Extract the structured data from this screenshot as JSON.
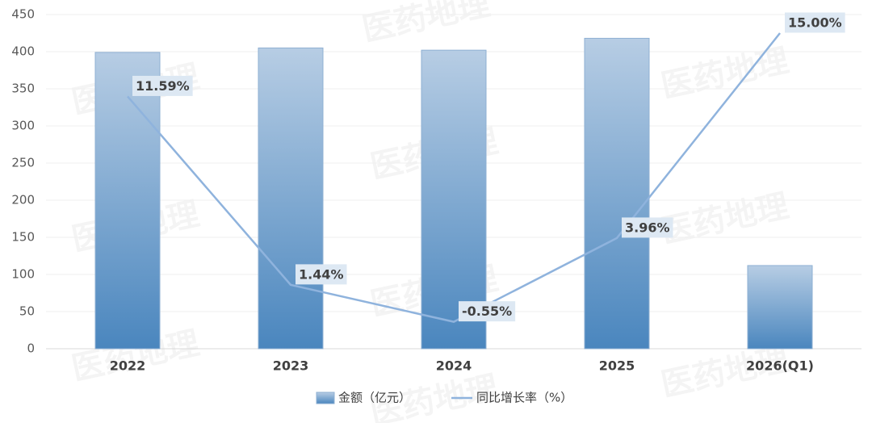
{
  "chart_data": {
    "type": "bar-line",
    "watermark": "医药地理",
    "categories": [
      "2022",
      "2023",
      "2024",
      "2025",
      "2026(Q1)"
    ],
    "series": [
      {
        "name": "金额（亿元）",
        "type": "bar",
        "color": "#4a86be",
        "values": [
          399,
          405,
          402,
          418,
          112
        ]
      },
      {
        "name": "同比增长率（%）",
        "type": "line",
        "axis": "y2",
        "color": "#8fb3dd",
        "values": [
          11.59,
          1.44,
          -0.55,
          3.96,
          15.0
        ],
        "value_labels": [
          "11.59%",
          "1.44%",
          "-0.55%",
          "3.96%",
          "15.00%"
        ]
      }
    ],
    "ylim": [
      0,
      450
    ],
    "yticks": [
      0,
      50,
      100,
      150,
      200,
      250,
      300,
      350,
      400,
      450
    ],
    "y2lim": [
      -2,
      16
    ],
    "grid": true,
    "legend": "bottom"
  }
}
